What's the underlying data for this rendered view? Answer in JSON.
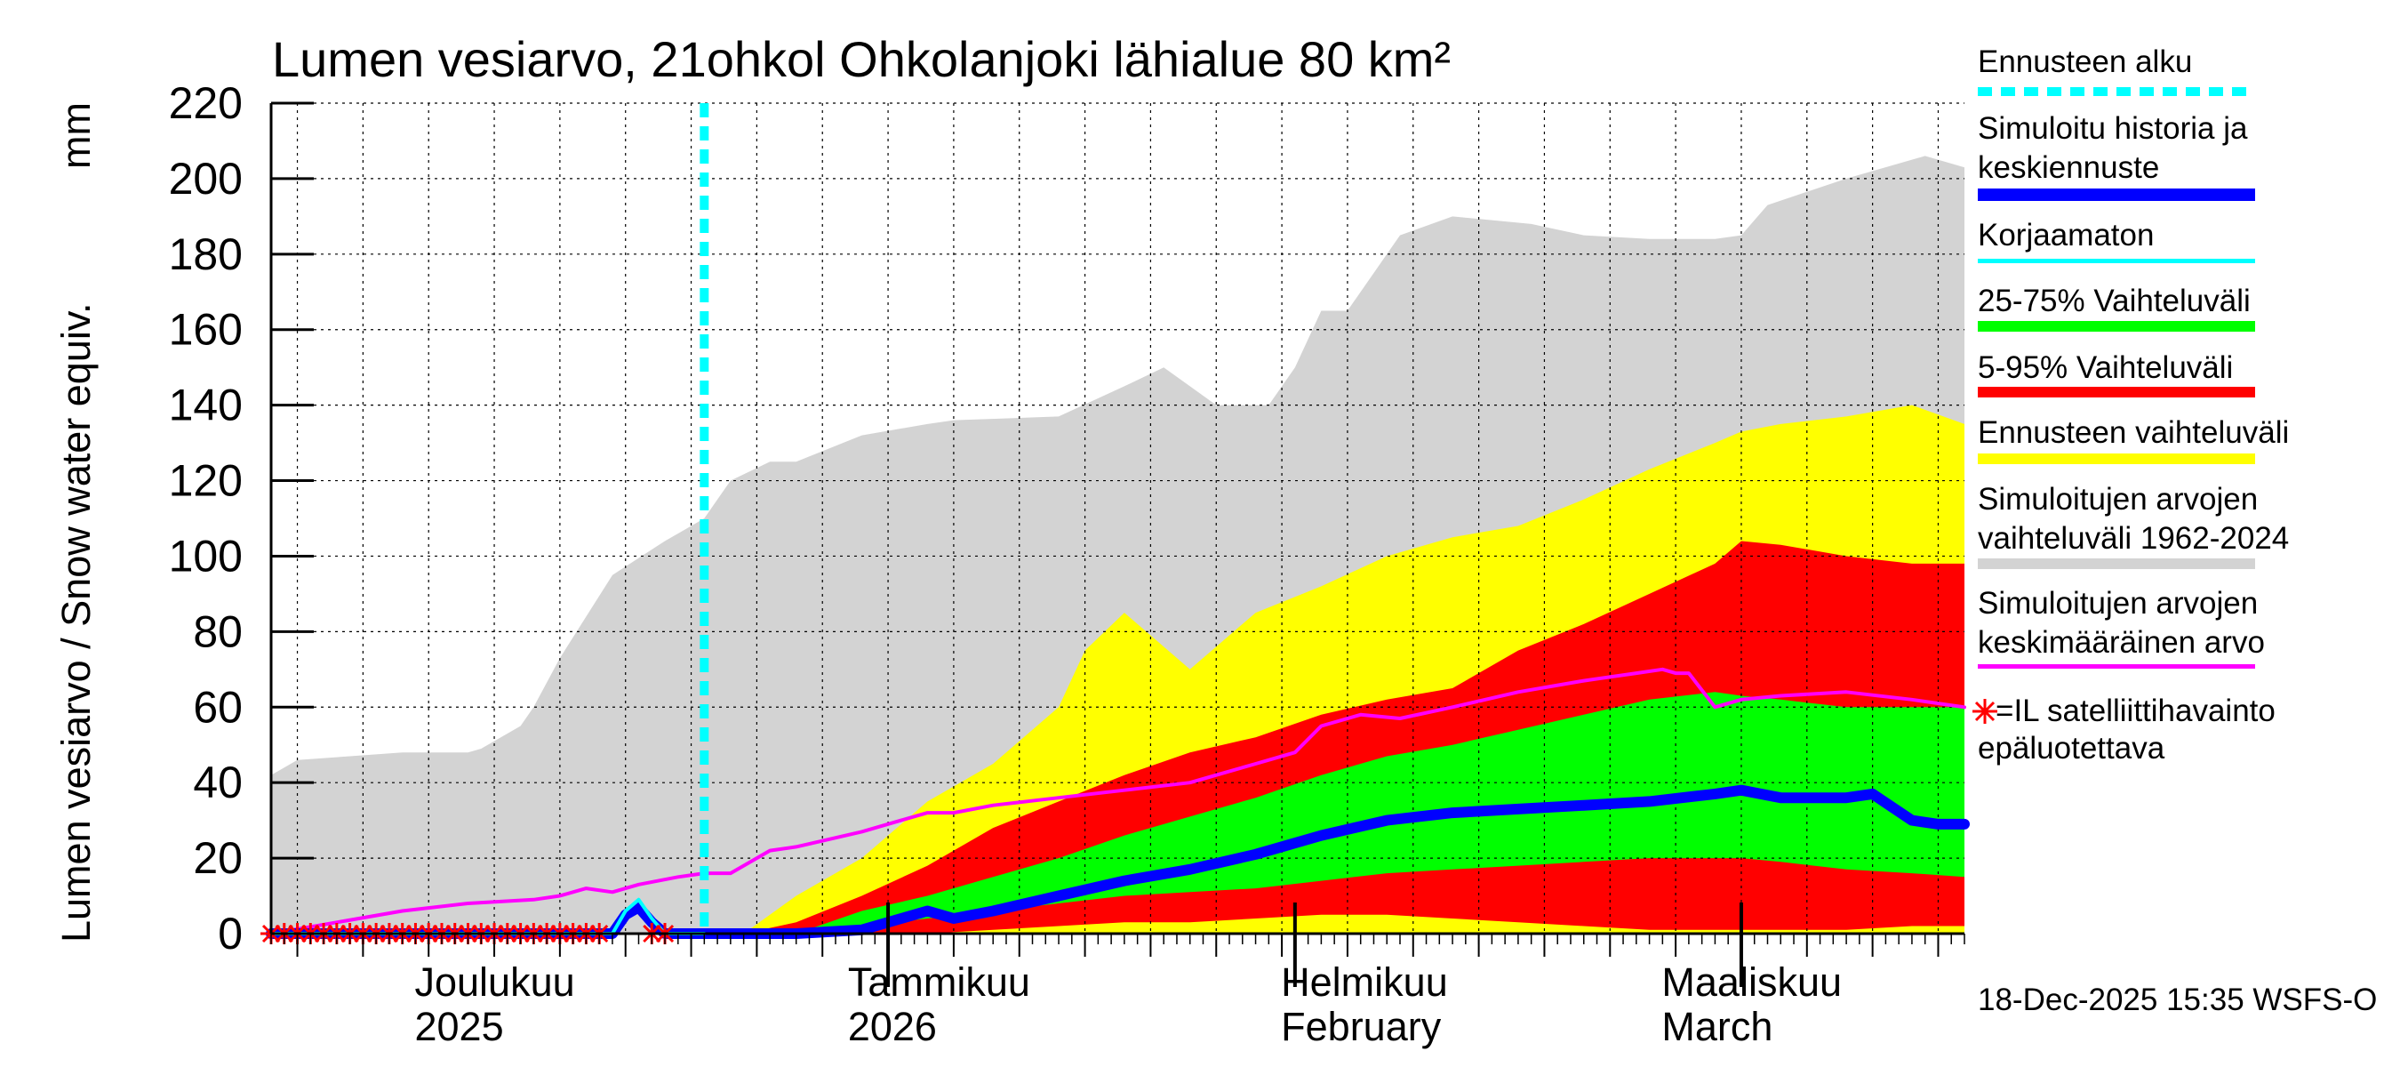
{
  "chart_data": {
    "type": "area",
    "title": "Lumen vesiarvo, 21ohkol Ohkolanjoki lähialue 80 km²",
    "ylabel": "Lumen vesiarvo / Snow water equiv.",
    "yunit": "mm",
    "ylim": [
      0,
      220
    ],
    "yticks": [
      0,
      20,
      40,
      60,
      80,
      100,
      120,
      140,
      160,
      180,
      200,
      220
    ],
    "x_day_range": [
      0,
      129
    ],
    "forecast_start_day": 33,
    "month_labels": [
      {
        "day": 15,
        "line1": "Joulukuu",
        "line2": "2025"
      },
      {
        "day": 48,
        "line1": "Tammikuu",
        "line2": "2026"
      },
      {
        "day": 81,
        "line1": "Helmikuu",
        "line2": "February"
      },
      {
        "day": 110,
        "line1": "Maaliskuu",
        "line2": "March"
      }
    ],
    "month_boundaries": [
      47,
      78,
      112
    ],
    "grid": true,
    "series": [
      {
        "name": "historical_range_1962_2024",
        "type": "band",
        "color": "#d3d3d3",
        "x": [
          0,
          2,
          6,
          10,
          15,
          16,
          19,
          20,
          22,
          26,
          30,
          33,
          35,
          38,
          40,
          45,
          50,
          52,
          60,
          65,
          68,
          70,
          72,
          76,
          78,
          80,
          82,
          86,
          90,
          96,
          100,
          105,
          110,
          112,
          114,
          120,
          126,
          129
        ],
        "low": [
          0,
          0,
          0,
          0,
          0,
          0,
          0,
          0,
          0,
          0,
          0,
          0,
          0,
          0,
          0,
          0,
          0,
          0,
          0,
          0,
          0,
          0,
          0,
          0,
          0,
          0,
          0,
          0,
          0,
          0,
          0,
          0,
          0,
          0,
          0,
          0,
          0,
          0
        ],
        "high": [
          42,
          46,
          47,
          48,
          48,
          49,
          55,
          60,
          73,
          95,
          104,
          110,
          120,
          125,
          125,
          132,
          135,
          136,
          137,
          145,
          150,
          145,
          140,
          140,
          150,
          165,
          165,
          185,
          190,
          188,
          185,
          184,
          184,
          185,
          193,
          200,
          206,
          203
        ]
      },
      {
        "name": "forecast_range",
        "type": "band",
        "color": "#ffff00",
        "x": [
          0,
          36,
          40,
          45,
          50,
          55,
          60,
          62,
          65,
          70,
          75,
          80,
          85,
          90,
          95,
          100,
          105,
          110,
          112,
          115,
          120,
          125,
          129
        ],
        "low": [
          0,
          0,
          0,
          0,
          0,
          0,
          0,
          0,
          0,
          0,
          0,
          0,
          0,
          0,
          0,
          0,
          0,
          0,
          0,
          0,
          0,
          0,
          0
        ],
        "high": [
          0,
          0,
          10,
          20,
          35,
          45,
          60,
          75,
          85,
          70,
          85,
          92,
          100,
          105,
          108,
          115,
          123,
          130,
          133,
          135,
          137,
          140,
          135
        ]
      },
      {
        "name": "range_5_95",
        "type": "band",
        "color": "#ff0000",
        "x": [
          0,
          36,
          40,
          45,
          50,
          55,
          60,
          65,
          70,
          75,
          80,
          85,
          90,
          95,
          100,
          105,
          110,
          112,
          115,
          120,
          125,
          129
        ],
        "low": [
          0,
          0,
          0,
          0,
          0,
          1,
          2,
          3,
          3,
          4,
          5,
          5,
          4,
          3,
          2,
          1,
          1,
          1,
          1,
          1,
          2,
          2
        ],
        "high": [
          0,
          0,
          3,
          10,
          18,
          28,
          35,
          42,
          48,
          52,
          58,
          62,
          65,
          75,
          82,
          90,
          98,
          104,
          103,
          100,
          98,
          98
        ]
      },
      {
        "name": "range_25_75",
        "type": "band",
        "color": "#00ff00",
        "x": [
          0,
          40,
          45,
          50,
          55,
          60,
          65,
          70,
          75,
          80,
          85,
          90,
          95,
          100,
          105,
          110,
          112,
          115,
          120,
          125,
          129
        ],
        "low": [
          0,
          0,
          2,
          4,
          6,
          8,
          10,
          11,
          12,
          14,
          16,
          17,
          18,
          19,
          20,
          20,
          20,
          19,
          17,
          16,
          15
        ],
        "high": [
          0,
          0,
          6,
          10,
          15,
          20,
          26,
          31,
          36,
          42,
          47,
          50,
          54,
          58,
          62,
          64,
          63,
          62,
          60,
          60,
          60
        ]
      },
      {
        "name": "simulated_mean_1962_2024",
        "type": "line",
        "color": "#ff00ff",
        "x": [
          0,
          5,
          10,
          15,
          20,
          22,
          24,
          26,
          28,
          31,
          33,
          35,
          38,
          40,
          45,
          48,
          50,
          52,
          55,
          60,
          65,
          70,
          72,
          75,
          78,
          80,
          83,
          86,
          90,
          95,
          100,
          102,
          104,
          106,
          107,
          108,
          110,
          112,
          115,
          120,
          125,
          129
        ],
        "y": [
          0,
          3,
          6,
          8,
          9,
          10,
          12,
          11,
          13,
          15,
          16,
          16,
          22,
          23,
          27,
          30,
          32,
          32,
          34,
          36,
          38,
          40,
          42,
          45,
          48,
          55,
          58,
          57,
          60,
          64,
          67,
          68,
          69,
          70,
          69,
          69,
          60,
          62,
          63,
          64,
          62,
          60
        ]
      },
      {
        "name": "simulated_history_and_median_forecast",
        "type": "line",
        "color": "#0000ff",
        "x": [
          0,
          26,
          27,
          28,
          29,
          30,
          33,
          36,
          40,
          45,
          48,
          50,
          52,
          55,
          60,
          65,
          70,
          75,
          80,
          85,
          90,
          95,
          100,
          105,
          110,
          112,
          115,
          120,
          122,
          125,
          127,
          129
        ],
        "y": [
          0,
          0,
          5,
          7,
          3,
          0,
          0,
          0,
          0,
          1,
          4,
          6,
          4,
          6,
          10,
          14,
          17,
          21,
          26,
          30,
          32,
          33,
          34,
          35,
          37,
          38,
          36,
          36,
          37,
          30,
          29,
          29
        ]
      },
      {
        "name": "uncorrected",
        "type": "line",
        "color": "#00ffff",
        "x": [
          0,
          26,
          27,
          28,
          29,
          30,
          33
        ],
        "y": [
          0,
          0,
          6,
          9,
          4,
          0,
          0
        ]
      },
      {
        "name": "satellite_observation_unreliable",
        "type": "scatter",
        "color": "#ff0000",
        "marker": "star",
        "x": [
          0,
          1,
          2,
          3,
          4,
          5,
          6,
          7,
          8,
          9,
          10,
          11,
          12,
          13,
          14,
          15,
          16,
          17,
          18,
          19,
          20,
          21,
          22,
          23,
          24,
          25,
          29,
          30
        ],
        "y": [
          0,
          0,
          0,
          0,
          0,
          0,
          0,
          0,
          0,
          0,
          0,
          0,
          0,
          0,
          0,
          0,
          0,
          0,
          0,
          0,
          0,
          0,
          0,
          0,
          0,
          0,
          0,
          0
        ]
      }
    ]
  },
  "legend": {
    "forecast_start": "Ennusteen alku",
    "simulated_history_1": "Simuloitu historia ja",
    "simulated_history_2": "keskiennuste",
    "uncorrected": "Korjaamaton",
    "range_25_75": "25-75% Vaihteluväli",
    "range_5_95": "5-95% Vaihteluväli",
    "forecast_range": "Ennusteen vaihteluväli",
    "hist_range_1": "Simuloitujen arvojen",
    "hist_range_2": "vaihteluväli 1962-2024",
    "hist_mean_1": "Simuloitujen arvojen",
    "hist_mean_2": "keskimääräinen arvo",
    "satellite_1": "=IL satelliittihavainto",
    "satellite_2": "epäluotettava"
  },
  "footer": "18-Dec-2025 15:35 WSFS-O",
  "colors": {
    "forecast_start": "#00ffff",
    "simulated": "#0000ff",
    "uncorrected": "#00ffff",
    "range_25_75": "#00ff00",
    "range_5_95": "#ff0000",
    "forecast_range": "#ffff00",
    "hist_range": "#d3d3d3",
    "hist_mean": "#ff00ff",
    "satellite": "#ff0000"
  }
}
